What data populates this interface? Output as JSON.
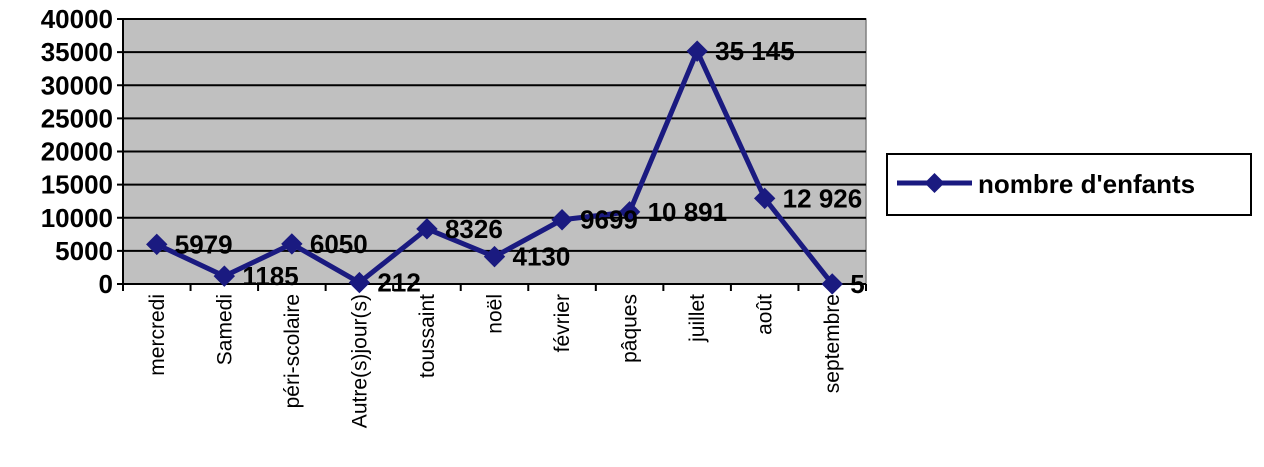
{
  "chart_data": {
    "type": "line",
    "title": "",
    "xlabel": "",
    "ylabel": "",
    "categories": [
      "mercredi",
      "Samedi",
      "péri-scolaire",
      "Autre(s)jour(s)",
      "toussaint",
      "noël",
      "février",
      "pâques",
      "juillet",
      "août",
      "septembre"
    ],
    "series": [
      {
        "name": "nombre d'enfants",
        "values": [
          5979,
          1185,
          6050,
          212,
          8326,
          4130,
          9699,
          10891,
          35145,
          12926,
          5
        ],
        "data_labels": [
          "5979",
          "1185",
          "6050",
          "212",
          "8326",
          "4130",
          "9699",
          "10 891",
          "35 145",
          "12 926",
          "5"
        ],
        "color": "#1a1a80"
      }
    ],
    "ylim": [
      0,
      40000
    ],
    "yticks": [
      "0",
      "5000",
      "10000",
      "15000",
      "20000",
      "25000",
      "30000",
      "35000",
      "40000"
    ],
    "grid": true,
    "plot_background": "#c0c0c0",
    "legend_position": "right"
  }
}
